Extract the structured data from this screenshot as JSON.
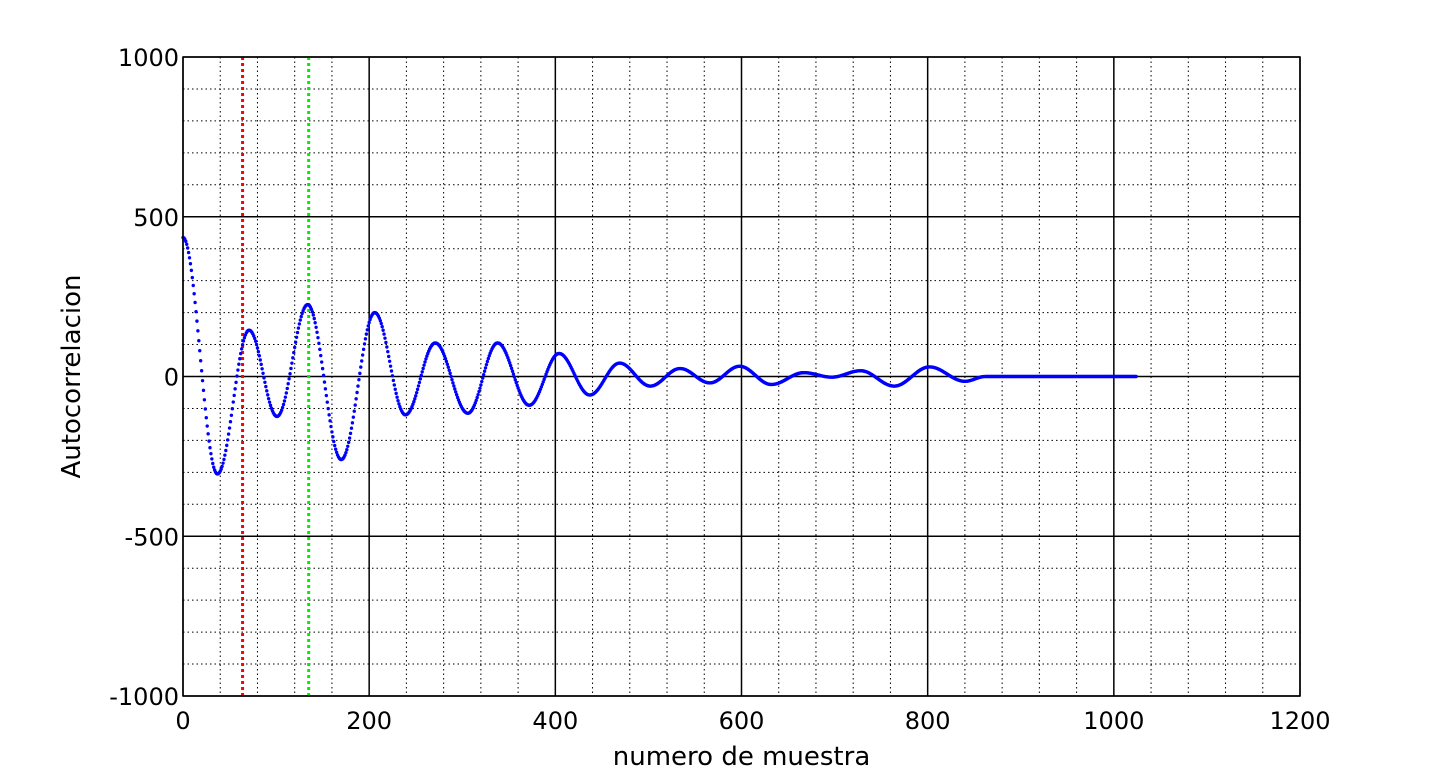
{
  "chart_data": {
    "type": "scatter",
    "title": "",
    "xlabel": "numero de muestra",
    "ylabel": "Autocorrelacion",
    "xlim": [
      0,
      1200
    ],
    "ylim": [
      -1000,
      1000
    ],
    "x_ticks": [
      0,
      200,
      400,
      600,
      800,
      1000,
      1200
    ],
    "y_ticks": [
      -1000,
      -500,
      0,
      500,
      1000
    ],
    "x_tick_labels": [
      "0",
      "200",
      "400",
      "600",
      "800",
      "1000",
      "1200"
    ],
    "y_tick_labels": [
      "-1000",
      "-500",
      "0",
      "500",
      "1000"
    ],
    "grid": {
      "major": true,
      "minor": true,
      "minor_x_step": 40,
      "minor_y_step": 100
    },
    "series": [
      {
        "color": "#0000ff",
        "marker": "dot",
        "x_start": 0,
        "x_end": 1024,
        "x_step": 1,
        "peaks": [
          [
            0,
            435
          ],
          [
            37,
            -305
          ],
          [
            71,
            145
          ],
          [
            101,
            -125
          ],
          [
            134,
            225
          ],
          [
            170,
            -260
          ],
          [
            206,
            200
          ],
          [
            239,
            -120
          ],
          [
            271,
            105
          ],
          [
            306,
            -115
          ],
          [
            338,
            105
          ],
          [
            372,
            -90
          ],
          [
            404,
            72
          ],
          [
            437,
            -58
          ],
          [
            469,
            42
          ],
          [
            502,
            -30
          ],
          [
            534,
            25
          ],
          [
            566,
            -20
          ],
          [
            598,
            32
          ],
          [
            632,
            -25
          ],
          [
            667,
            12
          ],
          [
            697,
            -2
          ],
          [
            728,
            18
          ],
          [
            764,
            -30
          ],
          [
            802,
            30
          ],
          [
            840,
            -15
          ],
          [
            862,
            0
          ],
          [
            1024,
            0
          ]
        ]
      }
    ],
    "vertical_lines": [
      {
        "x": 64,
        "color": "#ff0000",
        "style": "dotted"
      },
      {
        "x": 135,
        "color": "#00ee00",
        "style": "dotted"
      }
    ]
  }
}
